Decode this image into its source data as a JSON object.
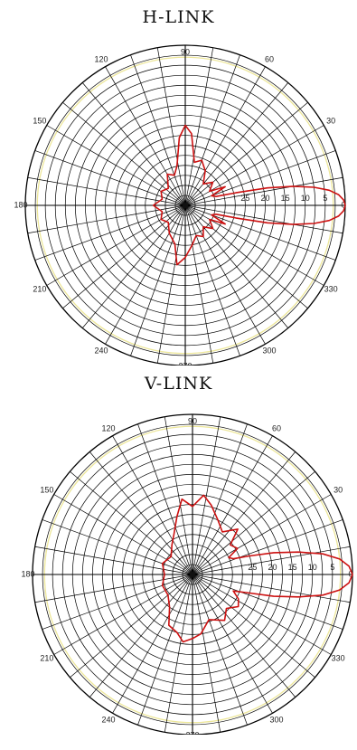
{
  "chart_data": [
    {
      "type": "polar",
      "title": "H-LINK",
      "angle_ticks": [
        "0",
        "30",
        "60",
        "90",
        "120",
        "150",
        "180",
        "210",
        "240",
        "270",
        "300",
        "330"
      ],
      "radial_ticks": [
        "5",
        "10",
        "15",
        "20",
        "25"
      ],
      "radial_unit_inverted": true,
      "rlim": [
        0,
        40
      ],
      "angle_step_deg": 10,
      "grid": true,
      "reference_circle_r": 3,
      "series": [
        {
          "color": "#cc1111",
          "points": [
            {
              "angle": 0,
              "r": 0
            },
            {
              "angle": 2,
              "r": 0.4
            },
            {
              "angle": 4,
              "r": 1.6
            },
            {
              "angle": 6,
              "r": 3.8
            },
            {
              "angle": 8,
              "r": 7.5
            },
            {
              "angle": 10,
              "r": 12.5
            },
            {
              "angle": 12,
              "r": 19
            },
            {
              "angle": 14,
              "r": 27
            },
            {
              "angle": 16,
              "r": 32
            },
            {
              "angle": 20,
              "r": 33
            },
            {
              "angle": 25,
              "r": 29
            },
            {
              "angle": 30,
              "r": 33
            },
            {
              "angle": 40,
              "r": 31
            },
            {
              "angle": 50,
              "r": 33
            },
            {
              "angle": 60,
              "r": 30
            },
            {
              "angle": 70,
              "r": 28
            },
            {
              "angle": 78,
              "r": 29
            },
            {
              "angle": 85,
              "r": 22
            },
            {
              "angle": 90,
              "r": 20
            },
            {
              "angle": 95,
              "r": 23
            },
            {
              "angle": 102,
              "r": 30
            },
            {
              "angle": 110,
              "r": 32
            },
            {
              "angle": 120,
              "r": 31
            },
            {
              "angle": 135,
              "r": 34
            },
            {
              "angle": 150,
              "r": 33
            },
            {
              "angle": 165,
              "r": 34
            },
            {
              "angle": 180,
              "r": 32
            },
            {
              "angle": 195,
              "r": 34
            },
            {
              "angle": 210,
              "r": 33
            },
            {
              "angle": 225,
              "r": 34
            },
            {
              "angle": 240,
              "r": 32
            },
            {
              "angle": 255,
              "r": 30
            },
            {
              "angle": 262,
              "r": 25
            },
            {
              "angle": 270,
              "r": 27
            },
            {
              "angle": 280,
              "r": 30
            },
            {
              "angle": 290,
              "r": 32
            },
            {
              "angle": 300,
              "r": 31
            },
            {
              "angle": 310,
              "r": 33
            },
            {
              "angle": 320,
              "r": 31
            },
            {
              "angle": 330,
              "r": 33
            },
            {
              "angle": 335,
              "r": 29
            },
            {
              "angle": 340,
              "r": 33
            },
            {
              "angle": 344,
              "r": 32
            },
            {
              "angle": 346,
              "r": 27
            },
            {
              "angle": 348,
              "r": 19
            },
            {
              "angle": 350,
              "r": 12.5
            },
            {
              "angle": 352,
              "r": 7.5
            },
            {
              "angle": 354,
              "r": 3.8
            },
            {
              "angle": 356,
              "r": 1.6
            },
            {
              "angle": 358,
              "r": 0.4
            },
            {
              "angle": 360,
              "r": 0
            }
          ]
        }
      ]
    },
    {
      "type": "polar",
      "title": "V-LINK",
      "angle_ticks": [
        "0",
        "30",
        "60",
        "90",
        "120",
        "150",
        "180",
        "210",
        "240",
        "270",
        "300",
        "330"
      ],
      "radial_ticks": [
        "5",
        "10",
        "15",
        "20",
        "25"
      ],
      "radial_unit_inverted": true,
      "rlim": [
        0,
        40
      ],
      "angle_step_deg": 10,
      "grid": true,
      "reference_circle_r": 3,
      "series": [
        {
          "color": "#cc1111",
          "points": [
            {
              "angle": 0,
              "r": 0
            },
            {
              "angle": 3,
              "r": 0.8
            },
            {
              "angle": 6,
              "r": 3
            },
            {
              "angle": 9,
              "r": 7
            },
            {
              "angle": 12,
              "r": 13
            },
            {
              "angle": 15,
              "r": 19
            },
            {
              "angle": 18,
              "r": 25
            },
            {
              "angle": 21,
              "r": 29
            },
            {
              "angle": 25,
              "r": 30
            },
            {
              "angle": 30,
              "r": 27
            },
            {
              "angle": 38,
              "r": 28
            },
            {
              "angle": 45,
              "r": 24
            },
            {
              "angle": 55,
              "r": 27
            },
            {
              "angle": 65,
              "r": 25
            },
            {
              "angle": 75,
              "r": 22
            },
            {
              "angle": 82,
              "r": 20
            },
            {
              "angle": 90,
              "r": 23
            },
            {
              "angle": 98,
              "r": 21
            },
            {
              "angle": 105,
              "r": 25
            },
            {
              "angle": 115,
              "r": 29
            },
            {
              "angle": 125,
              "r": 31
            },
            {
              "angle": 140,
              "r": 33
            },
            {
              "angle": 160,
              "r": 32
            },
            {
              "angle": 180,
              "r": 33
            },
            {
              "angle": 200,
              "r": 32
            },
            {
              "angle": 220,
              "r": 32
            },
            {
              "angle": 235,
              "r": 30
            },
            {
              "angle": 245,
              "r": 26
            },
            {
              "angle": 255,
              "r": 25
            },
            {
              "angle": 262,
              "r": 23
            },
            {
              "angle": 270,
              "r": 24
            },
            {
              "angle": 278,
              "r": 25
            },
            {
              "angle": 290,
              "r": 28
            },
            {
              "angle": 305,
              "r": 26
            },
            {
              "angle": 315,
              "r": 28
            },
            {
              "angle": 325,
              "r": 26
            },
            {
              "angle": 332,
              "r": 27
            },
            {
              "angle": 338,
              "r": 29
            },
            {
              "angle": 342,
              "r": 25
            },
            {
              "angle": 345,
              "r": 19
            },
            {
              "angle": 348,
              "r": 13
            },
            {
              "angle": 351,
              "r": 7
            },
            {
              "angle": 354,
              "r": 3
            },
            {
              "angle": 357,
              "r": 0.8
            },
            {
              "angle": 360,
              "r": 0
            }
          ]
        }
      ]
    }
  ],
  "colors": {
    "grid": "#000000",
    "reference_circle": "#ede79a",
    "pattern": "#cc1111"
  }
}
